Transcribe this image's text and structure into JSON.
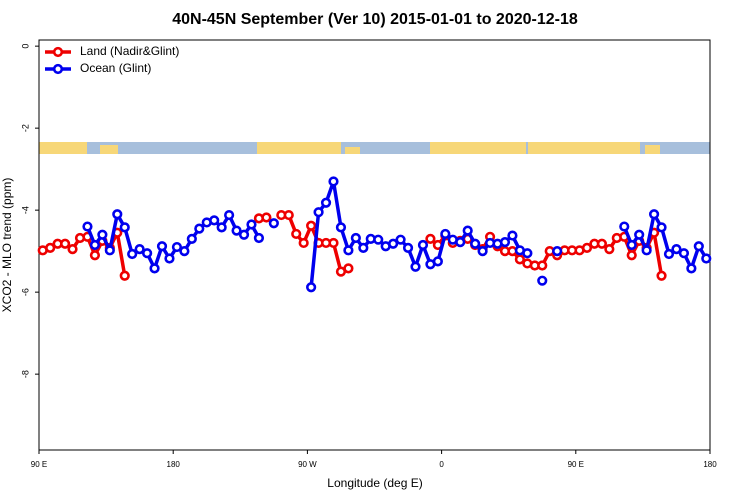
{
  "chart_data": {
    "type": "line",
    "title": "40N-45N September (Ver 10)   2015-01-01 to 2020-12-18",
    "xlabel": "Longitude (deg E)",
    "ylabel": "XCO2 - MLO trend (ppm)",
    "xlim": [
      90,
      540
    ],
    "ylim": [
      -9.85,
      0.15
    ],
    "xticks": [
      {
        "value": 90,
        "label": "90 E"
      },
      {
        "value": 180,
        "label": "180"
      },
      {
        "value": 270,
        "label": "90 W"
      },
      {
        "value": 360,
        "label": "0"
      },
      {
        "value": 450,
        "label": "90 E"
      },
      {
        "value": 540,
        "label": "180"
      }
    ],
    "yticks": [
      0,
      -2,
      -4,
      -6,
      -8
    ],
    "legend": "topleft",
    "x": [
      92.5,
      97.5,
      102.5,
      107.5,
      112.5,
      117.5,
      122.5,
      127.5,
      132.5,
      137.5,
      142.5,
      147.5,
      152.5,
      157.5,
      162.5,
      167.5,
      172.5,
      177.5,
      182.5,
      187.5,
      192.5,
      197.5,
      202.5,
      207.5,
      212.5,
      217.5,
      222.5,
      227.5,
      232.5,
      237.5,
      242.5,
      247.5,
      252.5,
      257.5,
      262.5,
      267.5,
      272.5,
      277.5,
      282.5,
      287.5,
      292.5,
      297.5,
      302.5,
      307.5,
      312.5,
      317.5,
      322.5,
      327.5,
      332.5,
      337.5,
      342.5,
      347.5,
      352.5,
      357.5,
      362.5,
      367.5,
      372.5,
      377.5,
      382.5,
      387.5,
      392.5,
      397.5,
      402.5,
      407.5,
      412.5,
      417.5,
      422.5,
      427.5,
      432.5,
      437.5,
      442.5,
      447.5,
      452.5,
      457.5,
      462.5,
      467.5,
      472.5,
      477.5,
      482.5,
      487.5,
      492.5,
      497.5,
      502.5,
      507.5,
      512.5,
      517.5,
      522.5,
      527.5,
      532.5,
      537.5
    ],
    "series": [
      {
        "name": "Land (Nadir&Glint)",
        "color": "#ee0000",
        "values": [
          -4.98,
          -4.92,
          -4.82,
          -4.82,
          -4.95,
          -4.68,
          -4.65,
          -5.1,
          -4.75,
          -4.92,
          -4.55,
          -5.6,
          null,
          null,
          null,
          null,
          null,
          null,
          null,
          null,
          null,
          null,
          null,
          null,
          null,
          null,
          null,
          null,
          null,
          -4.2,
          -4.18,
          null,
          -4.12,
          -4.12,
          -4.58,
          -4.8,
          -4.38,
          -4.8,
          -4.8,
          -4.8,
          -5.5,
          -5.42,
          null,
          null,
          null,
          null,
          null,
          null,
          null,
          null,
          null,
          null,
          -4.7,
          -4.85,
          -4.62,
          -4.8,
          -4.75,
          -4.7,
          -4.85,
          -4.95,
          -4.65,
          -4.88,
          -5.0,
          -5.0,
          -5.2,
          -5.3,
          -5.35,
          -5.35,
          -5.0,
          -5.1,
          -4.98,
          -4.98,
          -4.98,
          -4.92,
          -4.82,
          -4.82,
          -4.95,
          -4.68,
          -4.65,
          -5.1,
          -4.75,
          -4.92,
          -4.55,
          -5.6,
          null,
          null,
          null,
          null,
          null,
          null
        ]
      },
      {
        "name": "Ocean (Glint)",
        "color": "#0000ee",
        "values": [
          null,
          null,
          null,
          null,
          null,
          null,
          -4.4,
          -4.85,
          -4.6,
          -4.98,
          -4.1,
          -4.42,
          -5.07,
          -4.95,
          -5.05,
          -5.42,
          -4.88,
          -5.18,
          -4.9,
          -5.0,
          -4.7,
          -4.45,
          -4.3,
          -4.25,
          -4.42,
          -4.12,
          -4.5,
          -4.6,
          -4.35,
          -4.68,
          null,
          -4.32,
          null,
          null,
          null,
          null,
          -5.88,
          -4.05,
          -3.82,
          -3.3,
          -4.42,
          -4.98,
          -4.68,
          -4.92,
          -4.7,
          -4.72,
          -4.88,
          -4.82,
          -4.72,
          -4.92,
          -5.38,
          -4.85,
          -5.32,
          -5.25,
          -4.58,
          -4.72,
          -4.78,
          -4.5,
          -4.82,
          -5.0,
          -4.8,
          -4.82,
          -4.78,
          -4.62,
          -4.98,
          -5.05,
          null,
          -5.72,
          null,
          -5.0,
          null,
          null,
          null,
          null,
          null,
          null,
          null,
          null,
          -4.4,
          -4.85,
          -4.6,
          -4.98,
          -4.1,
          -4.42,
          -5.07,
          -4.95,
          -5.05,
          -5.42,
          -4.88,
          -5.18
        ]
      }
    ]
  }
}
